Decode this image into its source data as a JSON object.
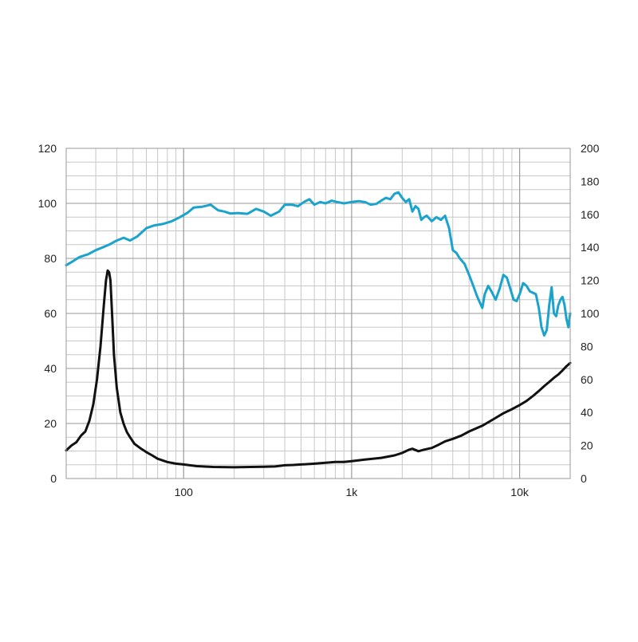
{
  "chart_data": {
    "type": "line",
    "x_scale": "log",
    "xlim": [
      20,
      20000
    ],
    "grid": true,
    "legend": "none",
    "x_tick_labels": [
      {
        "x": 100,
        "label": "100"
      },
      {
        "x": 1000,
        "label": "1k"
      },
      {
        "x": 10000,
        "label": "10k"
      }
    ],
    "y_left": {
      "ylim": [
        0,
        120
      ],
      "ticks": [
        0,
        20,
        40,
        60,
        80,
        100,
        120
      ],
      "tick_labels": [
        "0",
        "20",
        "40",
        "60",
        "80",
        "100",
        "120"
      ]
    },
    "y_right": {
      "ylim": [
        0,
        200
      ],
      "ticks": [
        0,
        20,
        40,
        60,
        80,
        100,
        120,
        140,
        160,
        180,
        200
      ],
      "tick_labels": [
        "0",
        "20",
        "40",
        "60",
        "80",
        "100",
        "120",
        "140",
        "160",
        "180",
        "200"
      ]
    },
    "series": [
      {
        "axis": "left",
        "color": "#1aa3cc",
        "x": [
          20,
          22,
          24,
          27,
          30,
          33,
          36,
          40,
          44,
          48,
          53,
          60,
          67,
          75,
          85,
          95,
          105,
          115,
          130,
          145,
          160,
          175,
          190,
          210,
          240,
          270,
          300,
          330,
          370,
          400,
          440,
          480,
          520,
          560,
          600,
          650,
          700,
          760,
          820,
          900,
          1000,
          1100,
          1200,
          1300,
          1400,
          1500,
          1600,
          1700,
          1800,
          1900,
          2000,
          2100,
          2200,
          2300,
          2400,
          2500,
          2600,
          2700,
          2800,
          3000,
          3200,
          3400,
          3600,
          3800,
          4000,
          4200,
          4400,
          4700,
          5000,
          5300,
          5600,
          6000,
          6200,
          6500,
          6800,
          7200,
          7600,
          8000,
          8400,
          8800,
          9200,
          9600,
          10000,
          10500,
          11000,
          11500,
          12000,
          12500,
          13000,
          13500,
          14000,
          14500,
          15000,
          15500,
          16000,
          16500,
          17000,
          17500,
          18000,
          18500,
          19000,
          19500,
          20000
        ],
        "y": [
          77.5,
          79,
          80.5,
          81.5,
          83,
          84,
          85,
          86.5,
          87.5,
          86.5,
          88,
          91,
          92,
          92.5,
          93.5,
          95,
          96.5,
          98.5,
          98.8,
          99.5,
          97.5,
          97,
          96.3,
          96.5,
          96.2,
          98,
          97,
          95.5,
          97,
          99.5,
          99.5,
          99,
          100.5,
          101.5,
          99.5,
          100.5,
          100,
          101,
          100.5,
          100,
          100.5,
          100.8,
          100.5,
          99.5,
          99.8,
          101,
          102,
          101.5,
          103.5,
          104,
          102,
          100.5,
          101.5,
          97,
          99,
          98,
          94,
          95,
          95.5,
          93.5,
          95,
          94,
          95.5,
          91,
          83,
          82,
          80,
          78,
          74,
          70,
          66,
          62,
          67,
          70,
          68,
          65,
          69,
          74,
          73,
          69,
          65,
          64.5,
          67,
          71,
          70,
          68,
          67.5,
          67,
          62,
          55,
          52,
          54,
          63,
          69.5,
          60,
          59,
          63,
          65,
          66,
          63,
          58,
          55,
          60
        ]
      },
      {
        "axis": "right",
        "color": "#111111",
        "x": [
          20,
          21.5,
          23,
          24.5,
          26,
          27.5,
          29,
          30.5,
          32,
          33.5,
          34.5,
          35.3,
          36,
          36.7,
          37.5,
          38.5,
          40,
          42,
          44,
          46,
          48,
          51,
          55,
          60,
          65,
          70,
          80,
          90,
          100,
          120,
          150,
          200,
          250,
          300,
          350,
          400,
          450,
          500,
          600,
          700,
          800,
          900,
          1000,
          1200,
          1500,
          1800,
          2000,
          2200,
          2300,
          2500,
          2700,
          3000,
          3300,
          3600,
          4000,
          4500,
          5000,
          6000,
          7000,
          8000,
          9000,
          10000,
          11000,
          12000,
          13000,
          14000,
          15000,
          16000,
          17000,
          18000,
          19000,
          20000
        ],
        "y": [
          17,
          20,
          22,
          26,
          28.5,
          35,
          45,
          60,
          80,
          105,
          120,
          126,
          125,
          120,
          100,
          75,
          55,
          40,
          33,
          28,
          25,
          21,
          18.5,
          16,
          14,
          12,
          10,
          9,
          8.5,
          7.5,
          7,
          6.8,
          7,
          7.1,
          7.3,
          8,
          8.2,
          8.5,
          9,
          9.5,
          10,
          10,
          10.5,
          11.5,
          12.5,
          14,
          15.5,
          17.5,
          18,
          16.5,
          17.5,
          18.5,
          20.5,
          22.5,
          24,
          26,
          28.5,
          32,
          36,
          39.5,
          42,
          44.5,
          47,
          50,
          53,
          56,
          58.5,
          61,
          63,
          65.5,
          68,
          70
        ]
      }
    ]
  }
}
